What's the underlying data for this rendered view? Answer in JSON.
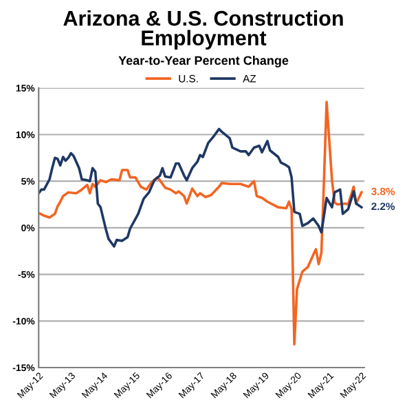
{
  "chart_data": {
    "type": "line",
    "title": "Arizona & U.S. Construction\nEmployment",
    "subtitle": "Year-to-Year Percent Change",
    "series": [
      {
        "name": "U.S.",
        "color": "#f26522",
        "x": [
          "2012-05",
          "2012-07",
          "2012-09",
          "2012-11",
          "2012-12",
          "2013-01",
          "2013-02",
          "2013-04",
          "2013-07",
          "2013-09",
          "2013-11",
          "2013-12",
          "2014-01",
          "2014-02",
          "2014-04",
          "2014-06",
          "2014-08",
          "2014-11",
          "2014-12",
          "2015-02",
          "2015-03",
          "2015-05",
          "2015-07",
          "2015-09",
          "2015-11",
          "2016-01",
          "2016-02",
          "2016-04",
          "2016-06",
          "2016-08",
          "2016-09",
          "2016-11",
          "2016-12",
          "2017-02",
          "2017-04",
          "2017-05",
          "2017-07",
          "2017-09",
          "2017-12",
          "2018-01",
          "2018-04",
          "2018-08",
          "2018-11",
          "2019-01",
          "2019-02",
          "2019-04",
          "2019-06",
          "2019-08",
          "2019-10",
          "2020-01",
          "2020-02",
          "2020-03",
          "2020-04",
          "2020-05",
          "2020-07",
          "2020-09",
          "2020-11",
          "2020-12",
          "2021-01",
          "2021-02",
          "2021-03",
          "2021-04",
          "2021-06",
          "2021-07",
          "2021-08",
          "2021-11",
          "2021-12",
          "2022-02",
          "2022-03",
          "2022-05"
        ],
        "values": [
          1.6,
          1.3,
          1.1,
          1.5,
          2.3,
          2.8,
          3.4,
          3.8,
          3.7,
          4.1,
          4.6,
          3.7,
          4.7,
          4.4,
          5.1,
          4.9,
          5.2,
          5.1,
          6.2,
          6.2,
          5.4,
          5.4,
          4.4,
          4.1,
          4.9,
          5.4,
          5.1,
          4.3,
          4.1,
          3.7,
          3.9,
          3.4,
          2.6,
          4.2,
          3.4,
          3.7,
          3.3,
          3.5,
          4.4,
          4.8,
          4.7,
          4.7,
          4.4,
          5.0,
          3.4,
          3.2,
          2.8,
          2.5,
          2.2,
          2.1,
          2.8,
          2.0,
          -12.5,
          -6.6,
          -4.7,
          -4.2,
          -2.9,
          -2.3,
          -3.9,
          -2.7,
          4.7,
          13.5,
          5.1,
          2.7,
          2.5,
          2.6,
          2.5,
          4.4,
          2.6,
          3.8
        ]
      },
      {
        "name": "AZ",
        "color": "#1f3864",
        "x": [
          "2012-05",
          "2012-06",
          "2012-07",
          "2012-09",
          "2012-10",
          "2012-11",
          "2012-12",
          "2013-01",
          "2013-02",
          "2013-03",
          "2013-04",
          "2013-05",
          "2013-06",
          "2013-08",
          "2013-09",
          "2013-11",
          "2013-12",
          "2014-01",
          "2014-02",
          "2014-03",
          "2014-04",
          "2014-06",
          "2014-07",
          "2014-09",
          "2014-10",
          "2014-12",
          "2015-02",
          "2015-03",
          "2015-06",
          "2015-08",
          "2015-10",
          "2015-12",
          "2016-02",
          "2016-03",
          "2016-04",
          "2016-06",
          "2016-08",
          "2016-09",
          "2016-11",
          "2016-12",
          "2017-02",
          "2017-04",
          "2017-05",
          "2017-06",
          "2017-08",
          "2017-10",
          "2017-12",
          "2018-01",
          "2018-04",
          "2018-05",
          "2018-08",
          "2018-10",
          "2018-11",
          "2019-01",
          "2019-03",
          "2019-04",
          "2019-06",
          "2019-07",
          "2019-10",
          "2019-11",
          "2020-01",
          "2020-02",
          "2020-03",
          "2020-04",
          "2020-06",
          "2020-07",
          "2020-09",
          "2020-11",
          "2021-01",
          "2021-02",
          "2021-03",
          "2021-04",
          "2021-06",
          "2021-07",
          "2021-09",
          "2021-10",
          "2021-12",
          "2022-02",
          "2022-03",
          "2022-05"
        ],
        "values": [
          3.7,
          4.1,
          4.1,
          5.2,
          6.4,
          7.5,
          7.4,
          6.7,
          7.6,
          7.2,
          7.5,
          8.0,
          7.7,
          6.4,
          5.2,
          5.1,
          5.0,
          6.4,
          6.0,
          2.6,
          2.2,
          -0.2,
          -1.2,
          -2.0,
          -1.3,
          -1.4,
          -1.0,
          -0.1,
          1.5,
          3.1,
          3.8,
          5.1,
          5.6,
          6.4,
          5.5,
          5.4,
          6.9,
          6.9,
          5.6,
          5.1,
          6.4,
          7.1,
          7.8,
          7.6,
          9.1,
          9.8,
          10.6,
          10.3,
          9.6,
          8.6,
          8.2,
          8.2,
          7.8,
          8.6,
          8.8,
          8.1,
          9.3,
          8.3,
          7.6,
          7.0,
          6.7,
          6.5,
          5.4,
          1.7,
          1.5,
          0.2,
          0.5,
          1.0,
          0.2,
          -0.5,
          1.2,
          3.2,
          2.2,
          3.8,
          4.1,
          1.5,
          2.0,
          3.9,
          2.6,
          2.2
        ]
      }
    ],
    "annotations": [
      {
        "text": "3.8%",
        "x": "2022-05",
        "y": 3.8
      },
      {
        "text": "2.2%",
        "x": "2022-05",
        "y": 2.2
      }
    ],
    "xlim": [
      "2012-05",
      "2022-06"
    ],
    "xticks": [
      {
        "value": "2012-05",
        "label": "May-12"
      },
      {
        "value": "2013-05",
        "label": "May-13"
      },
      {
        "value": "2014-05",
        "label": "May-14"
      },
      {
        "value": "2015-05",
        "label": "May-15"
      },
      {
        "value": "2016-05",
        "label": "May-16"
      },
      {
        "value": "2017-05",
        "label": "May-17"
      },
      {
        "value": "2018-05",
        "label": "May-18"
      },
      {
        "value": "2019-05",
        "label": "May-19"
      },
      {
        "value": "2020-05",
        "label": "May-20"
      },
      {
        "value": "2021-05",
        "label": "May-21"
      },
      {
        "value": "2022-05",
        "label": "May-22"
      }
    ],
    "ylim": [
      -15,
      15
    ],
    "yticks": [
      {
        "value": -15,
        "label": "-15%"
      },
      {
        "value": -10,
        "label": "-10%"
      },
      {
        "value": -5,
        "label": "-5%"
      },
      {
        "value": 0,
        "label": "0%"
      },
      {
        "value": 5,
        "label": "5%"
      },
      {
        "value": 10,
        "label": "10%"
      },
      {
        "value": 15,
        "label": "15%"
      }
    ],
    "grid": "y",
    "legend": "top"
  }
}
